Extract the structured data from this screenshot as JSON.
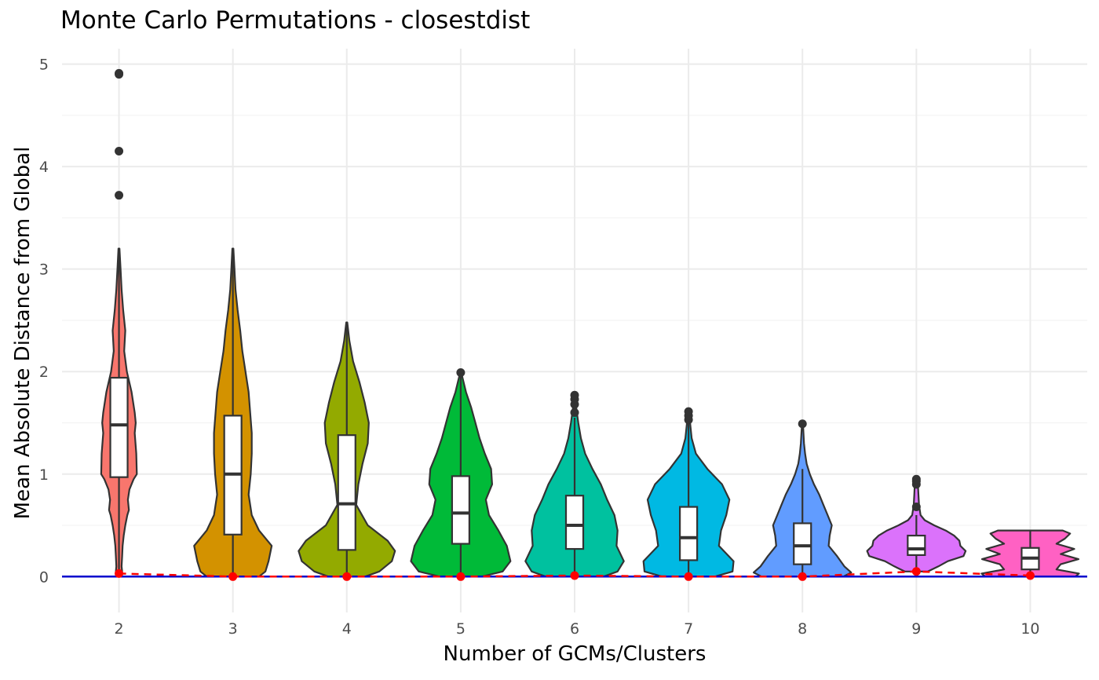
{
  "chart_data": {
    "type": "violin",
    "title": "Monte Carlo Permutations - closestdist",
    "xlabel": "Number of GCMs/Clusters",
    "ylabel": "Mean Absolute Distance from Global",
    "ylim": [
      -0.35,
      5.15
    ],
    "y_ticks": [
      "0",
      "1",
      "2",
      "3",
      "4",
      "5"
    ],
    "grid": true,
    "legend": "none",
    "reference_line": {
      "y": 0,
      "color": "#0000CD"
    },
    "observed_line": {
      "color": "#FF0000",
      "style": "dashed"
    },
    "categories": [
      "2",
      "3",
      "4",
      "5",
      "6",
      "7",
      "8",
      "9",
      "10"
    ],
    "colors": [
      "#F8766D",
      "#D39200",
      "#93AA00",
      "#00BA38",
      "#00C19F",
      "#00B9E3",
      "#619CFF",
      "#DB72FB",
      "#FF61C3"
    ],
    "groups": [
      {
        "x": "2",
        "min": 0.0,
        "q1": 0.97,
        "median": 1.48,
        "q3": 1.94,
        "whisker_high": 3.2,
        "outliers": [
          3.72,
          4.15,
          4.9,
          4.91
        ],
        "observed": 0.03
      },
      {
        "x": "3",
        "min": 0.0,
        "q1": 0.41,
        "median": 1.0,
        "q3": 1.57,
        "whisker_high": 3.2,
        "outliers": [],
        "observed": 0.0
      },
      {
        "x": "4",
        "min": 0.0,
        "q1": 0.26,
        "median": 0.71,
        "q3": 1.38,
        "whisker_high": 2.48,
        "outliers": [],
        "observed": 0.0
      },
      {
        "x": "5",
        "min": 0.0,
        "q1": 0.32,
        "median": 0.62,
        "q3": 0.98,
        "whisker_high": 1.95,
        "outliers": [
          1.99
        ],
        "observed": 0.0
      },
      {
        "x": "6",
        "min": 0.0,
        "q1": 0.27,
        "median": 0.5,
        "q3": 0.79,
        "whisker_high": 1.55,
        "outliers": [
          1.6,
          1.68,
          1.73,
          1.77
        ],
        "observed": 0.01
      },
      {
        "x": "7",
        "min": 0.0,
        "q1": 0.16,
        "median": 0.38,
        "q3": 0.68,
        "whisker_high": 1.5,
        "outliers": [
          1.53,
          1.57,
          1.61
        ],
        "observed": 0.0
      },
      {
        "x": "8",
        "min": 0.0,
        "q1": 0.12,
        "median": 0.3,
        "q3": 0.52,
        "whisker_high": 1.05,
        "outliers": [
          1.49
        ],
        "observed": 0.0
      },
      {
        "x": "9",
        "min": 0.05,
        "q1": 0.21,
        "median": 0.27,
        "q3": 0.4,
        "whisker_high": 0.6,
        "outliers": [
          0.68,
          0.9,
          0.93,
          0.95
        ],
        "observed": 0.05
      },
      {
        "x": "10",
        "min": 0.0,
        "q1": 0.07,
        "median": 0.18,
        "q3": 0.28,
        "whisker_high": 0.45,
        "outliers": [],
        "observed": 0.01
      }
    ],
    "violins": [
      {
        "y": [
          0.0,
          0.05,
          0.1,
          0.2,
          0.3,
          0.4,
          0.5,
          0.6,
          0.65,
          0.75,
          0.85,
          0.95,
          1.0,
          1.2,
          1.4,
          1.5,
          1.6,
          1.8,
          2.0,
          2.2,
          2.4,
          2.6,
          2.8,
          3.0,
          3.2
        ],
        "w": [
          0.04,
          0.06,
          0.05,
          0.06,
          0.07,
          0.09,
          0.12,
          0.16,
          0.19,
          0.17,
          0.2,
          0.28,
          0.34,
          0.33,
          0.3,
          0.32,
          0.3,
          0.24,
          0.15,
          0.1,
          0.12,
          0.08,
          0.05,
          0.03,
          0.01
        ]
      },
      {
        "y": [
          0.0,
          0.05,
          0.15,
          0.3,
          0.45,
          0.6,
          0.8,
          1.0,
          1.2,
          1.4,
          1.6,
          1.8,
          2.0,
          2.2,
          2.4,
          2.6,
          2.8,
          3.0,
          3.2
        ],
        "w": [
          0.5,
          0.62,
          0.68,
          0.74,
          0.5,
          0.36,
          0.3,
          0.34,
          0.36,
          0.36,
          0.33,
          0.3,
          0.24,
          0.18,
          0.14,
          0.09,
          0.05,
          0.03,
          0.01
        ]
      },
      {
        "y": [
          0.0,
          0.05,
          0.15,
          0.25,
          0.35,
          0.5,
          0.7,
          0.9,
          1.1,
          1.3,
          1.5,
          1.7,
          1.9,
          2.1,
          2.3,
          2.48
        ],
        "w": [
          0.35,
          0.62,
          0.86,
          0.92,
          0.78,
          0.4,
          0.18,
          0.22,
          0.3,
          0.4,
          0.42,
          0.34,
          0.24,
          0.12,
          0.05,
          0.01
        ]
      },
      {
        "y": [
          0.0,
          0.05,
          0.15,
          0.3,
          0.45,
          0.6,
          0.75,
          0.9,
          1.05,
          1.2,
          1.35,
          1.5,
          1.65,
          1.8,
          1.99
        ],
        "w": [
          0.4,
          0.8,
          0.95,
          0.88,
          0.72,
          0.54,
          0.48,
          0.6,
          0.58,
          0.46,
          0.36,
          0.28,
          0.2,
          0.1,
          0.01
        ]
      },
      {
        "y": [
          0.0,
          0.05,
          0.15,
          0.3,
          0.45,
          0.6,
          0.75,
          0.9,
          1.05,
          1.2,
          1.35,
          1.5,
          1.65,
          1.77
        ],
        "w": [
          0.55,
          0.82,
          0.94,
          0.8,
          0.82,
          0.76,
          0.62,
          0.5,
          0.34,
          0.2,
          0.12,
          0.07,
          0.03,
          0.01
        ]
      },
      {
        "y": [
          0.0,
          0.05,
          0.15,
          0.3,
          0.45,
          0.6,
          0.75,
          0.9,
          1.05,
          1.2,
          1.35,
          1.5,
          1.61
        ],
        "w": [
          0.5,
          0.84,
          0.86,
          0.58,
          0.62,
          0.72,
          0.78,
          0.64,
          0.36,
          0.14,
          0.06,
          0.03,
          0.01
        ]
      },
      {
        "y": [
          0.0,
          0.04,
          0.1,
          0.2,
          0.3,
          0.4,
          0.5,
          0.6,
          0.7,
          0.8,
          0.9,
          1.0,
          1.1,
          1.2,
          1.3,
          1.49
        ],
        "w": [
          0.78,
          0.93,
          0.8,
          0.66,
          0.5,
          0.52,
          0.56,
          0.48,
          0.4,
          0.32,
          0.22,
          0.14,
          0.08,
          0.05,
          0.03,
          0.01
        ]
      },
      {
        "y": [
          0.05,
          0.1,
          0.15,
          0.2,
          0.25,
          0.3,
          0.35,
          0.4,
          0.45,
          0.5,
          0.55,
          0.6,
          0.7,
          0.8,
          0.9,
          0.95
        ],
        "w": [
          0.22,
          0.42,
          0.6,
          0.9,
          0.94,
          0.84,
          0.82,
          0.72,
          0.56,
          0.34,
          0.16,
          0.08,
          0.05,
          0.04,
          0.03,
          0.01
        ]
      },
      {
        "y": [
          0.0,
          0.03,
          0.07,
          0.12,
          0.17,
          0.22,
          0.27,
          0.32,
          0.37,
          0.42,
          0.45
        ],
        "w": [
          0.86,
          0.93,
          0.5,
          0.58,
          0.92,
          0.58,
          0.84,
          0.5,
          0.66,
          0.76,
          0.62
        ]
      }
    ]
  }
}
